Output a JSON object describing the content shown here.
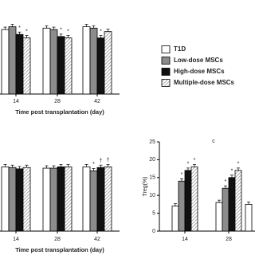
{
  "chart_data": [
    {
      "type": "bar",
      "categories": [
        "14",
        "28",
        "42"
      ],
      "xlabel": "Time post transplantation (day)",
      "ylim": [
        0,
        100
      ],
      "series": [
        {
          "name": "T1D",
          "color": "#ffffff",
          "values": [
            92,
            94,
            96
          ],
          "marks": [
            null,
            null,
            null
          ]
        },
        {
          "name": "Low-dose MSCs",
          "color": "#8c8c8c",
          "values": [
            96,
            92,
            94
          ],
          "marks": [
            null,
            null,
            null
          ]
        },
        {
          "name": "High-dose MSCs",
          "color": "#111111",
          "values": [
            85,
            82,
            80
          ],
          "marks": [
            "*",
            "*",
            "*"
          ]
        },
        {
          "name": "Multiple-dose MSCs",
          "color": "hatch",
          "values": [
            80,
            80,
            89
          ],
          "marks": [
            "*",
            "*",
            null
          ]
        }
      ]
    },
    {
      "type": "bar",
      "categories": [
        "14",
        "28",
        "42"
      ],
      "xlabel": "Time post transplantation (day)",
      "ylim": [
        0,
        100
      ],
      "series": [
        {
          "color": "#ffffff",
          "values": [
            96,
            94,
            96
          ],
          "marks": [
            null,
            null,
            null
          ]
        },
        {
          "color": "#8c8c8c",
          "values": [
            95,
            94,
            90
          ],
          "marks": [
            null,
            null,
            "*"
          ]
        },
        {
          "color": "#111111",
          "values": [
            93,
            96,
            95
          ],
          "marks": [
            null,
            null,
            "†"
          ]
        },
        {
          "color": "hatch",
          "values": [
            95,
            96,
            96
          ],
          "marks": [
            null,
            null,
            "†"
          ]
        }
      ]
    },
    {
      "type": "bar",
      "title": "c",
      "ylabel": "Treg(%)",
      "categories": [
        "14",
        "28",
        "42"
      ],
      "ylim": [
        0,
        25
      ],
      "yticks": [
        0,
        5,
        10,
        15,
        20,
        25
      ],
      "series": [
        {
          "color": "#ffffff",
          "values": [
            7,
            8,
            7.5
          ],
          "marks": [
            null,
            null,
            null
          ]
        },
        {
          "color": "#8c8c8c",
          "values": [
            14,
            12,
            null
          ],
          "marks": [
            "*",
            "*",
            null
          ]
        },
        {
          "color": "#111111",
          "values": [
            17,
            15,
            null
          ],
          "marks": [
            "*",
            "*",
            null
          ]
        },
        {
          "color": "hatch",
          "values": [
            18,
            17,
            null
          ],
          "marks": [
            "*",
            "*",
            null
          ]
        }
      ]
    }
  ]
}
